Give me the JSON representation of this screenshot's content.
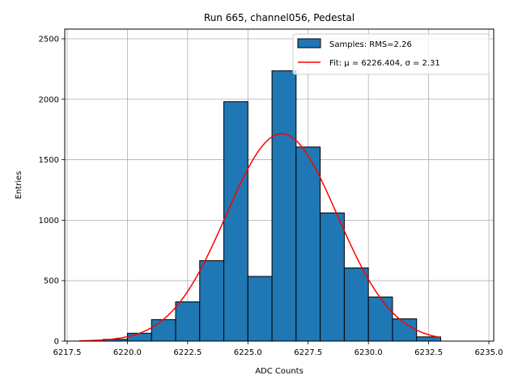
{
  "chart_data": {
    "type": "bar",
    "title": "Run 665, channel056, Pedestal",
    "xlabel": "ADC Counts",
    "ylabel": "Entries",
    "xlim": [
      6217.4,
      6235.2
    ],
    "ylim": [
      0,
      2580
    ],
    "xticks": [
      6217.5,
      6220.0,
      6222.5,
      6225.0,
      6227.5,
      6230.0,
      6232.5,
      6235.0
    ],
    "xtick_labels": [
      "6217.5",
      "6220.0",
      "6222.5",
      "6225.0",
      "6227.5",
      "6230.0",
      "6232.5",
      "6235.0"
    ],
    "yticks": [
      0,
      500,
      1000,
      1500,
      2000,
      2500
    ],
    "ytick_labels": [
      "0",
      "500",
      "1000",
      "1500",
      "2000",
      "2500"
    ],
    "grid": true,
    "legend_position": "top-right",
    "bin_width": 1,
    "bins": [
      {
        "left": 6219,
        "value": 15
      },
      {
        "left": 6220,
        "value": 65
      },
      {
        "left": 6221,
        "value": 178
      },
      {
        "left": 6222,
        "value": 325
      },
      {
        "left": 6223,
        "value": 665
      },
      {
        "left": 6224,
        "value": 1980
      },
      {
        "left": 6225,
        "value": 535
      },
      {
        "left": 6226,
        "value": 2235
      },
      {
        "left": 6227,
        "value": 1605
      },
      {
        "left": 6228,
        "value": 1060
      },
      {
        "left": 6229,
        "value": 605
      },
      {
        "left": 6230,
        "value": 365
      },
      {
        "left": 6231,
        "value": 185
      },
      {
        "left": 6232,
        "value": 35
      }
    ],
    "fit": {
      "mu": 6226.404,
      "sigma": 2.31,
      "peak": 1715,
      "x_start": 6218.0,
      "x_end": 6233.0
    },
    "series": [
      {
        "name": "Samples: RMS=2.26",
        "color": "#1f77b4"
      },
      {
        "name": "Fit: μ = 6226.404, σ = 2.31",
        "color": "#ff0000"
      }
    ]
  }
}
